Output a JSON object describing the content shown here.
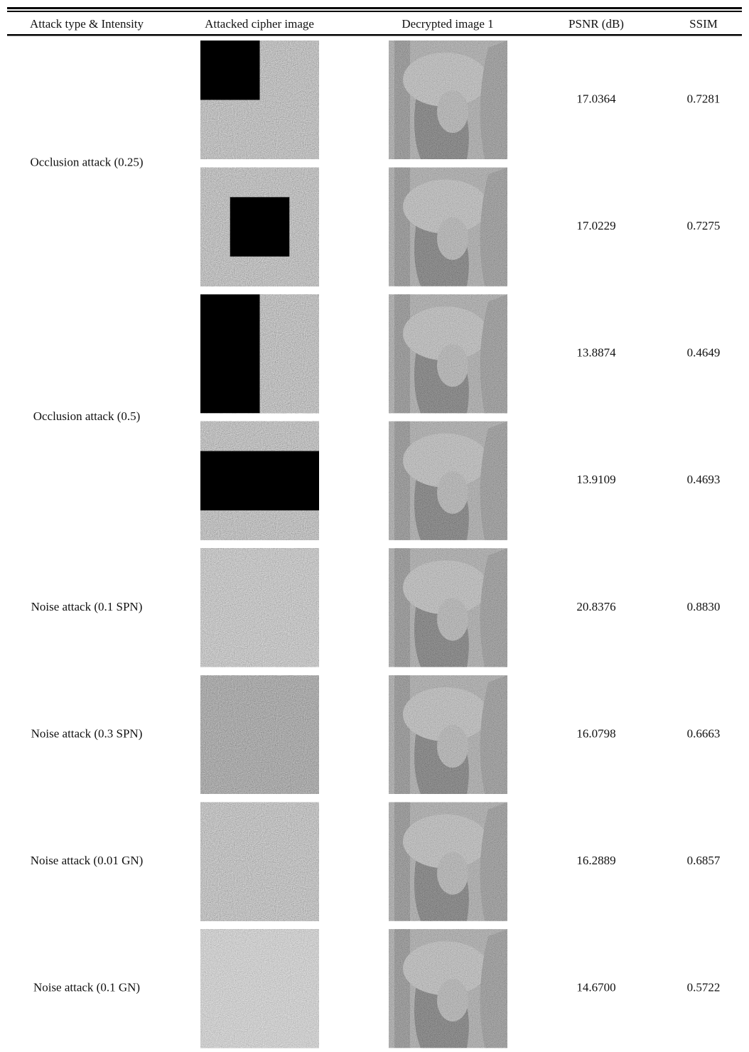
{
  "table": {
    "header": [
      "Attack type & Intensity",
      "Attacked cipher image",
      "Decrypted image 1",
      "PSNR (dB)",
      "SSIM"
    ],
    "groups": [
      {
        "label": "Occlusion attack (0.25)",
        "rows": [
          {
            "psnr": "17.0364",
            "ssim": "0.7281"
          },
          {
            "psnr": "17.0229",
            "ssim": "0.7275"
          }
        ]
      },
      {
        "label": "Occlusion attack (0.5)",
        "rows": [
          {
            "psnr": "13.8874",
            "ssim": "0.4649"
          },
          {
            "psnr": "13.9109",
            "ssim": "0.4693"
          }
        ]
      },
      {
        "label": "Noise attack (0.1 SPN)",
        "rows": [
          {
            "psnr": "20.8376",
            "ssim": "0.8830"
          }
        ]
      },
      {
        "label": "Noise attack (0.3 SPN)",
        "rows": [
          {
            "psnr": "16.0798",
            "ssim": "0.6663"
          }
        ]
      },
      {
        "label": "Noise attack (0.01 GN)",
        "rows": [
          {
            "psnr": "16.2889",
            "ssim": "0.6857"
          }
        ]
      },
      {
        "label": "Noise attack (0.1 GN)",
        "rows": [
          {
            "psnr": "14.6700",
            "ssim": "0.5722"
          }
        ]
      }
    ]
  }
}
